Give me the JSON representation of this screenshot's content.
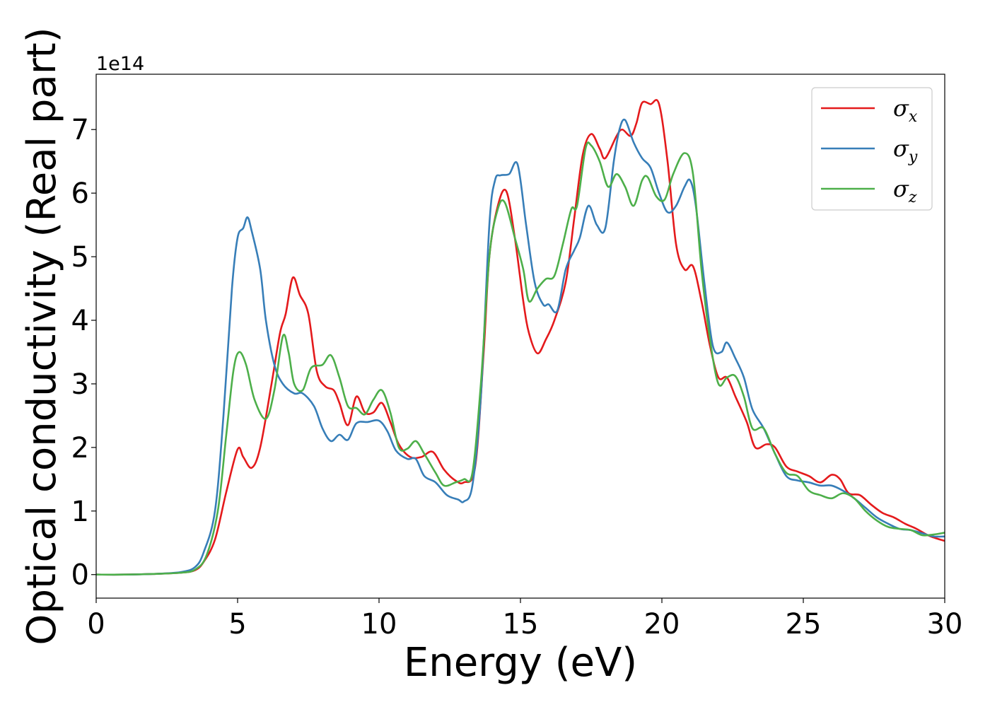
{
  "chart_data": {
    "type": "line",
    "xlabel": "Energy (eV)",
    "ylabel": "Optical conductivity (Real part)",
    "offset_text": "1e14",
    "xlim": [
      0,
      30
    ],
    "ylim": [
      -0.37,
      7.87
    ],
    "xticks": [
      0,
      5,
      10,
      15,
      20,
      25,
      30
    ],
    "yticks": [
      0,
      1,
      2,
      3,
      4,
      5,
      6,
      7
    ],
    "grid": false,
    "legend": "top-right",
    "series": [
      {
        "name": "σ",
        "name_sub": "x",
        "color": "#e41a1c",
        "points": [
          [
            0,
            0
          ],
          [
            1,
            0
          ],
          [
            2,
            0.01
          ],
          [
            3,
            0.03
          ],
          [
            3.5,
            0.07
          ],
          [
            3.8,
            0.2
          ],
          [
            4.2,
            0.55
          ],
          [
            4.6,
            1.3
          ],
          [
            5,
            1.97
          ],
          [
            5.2,
            1.85
          ],
          [
            5.5,
            1.68
          ],
          [
            5.8,
            2.0
          ],
          [
            6.2,
            3.0
          ],
          [
            6.5,
            3.8
          ],
          [
            6.7,
            4.1
          ],
          [
            6.95,
            4.67
          ],
          [
            7.2,
            4.4
          ],
          [
            7.5,
            4.1
          ],
          [
            7.8,
            3.2
          ],
          [
            8.1,
            2.96
          ],
          [
            8.4,
            2.9
          ],
          [
            8.6,
            2.7
          ],
          [
            8.9,
            2.35
          ],
          [
            9.2,
            2.8
          ],
          [
            9.5,
            2.55
          ],
          [
            9.8,
            2.55
          ],
          [
            10.1,
            2.7
          ],
          [
            10.4,
            2.4
          ],
          [
            10.7,
            2.05
          ],
          [
            11.1,
            1.85
          ],
          [
            11.5,
            1.85
          ],
          [
            11.9,
            1.93
          ],
          [
            12.3,
            1.65
          ],
          [
            12.7,
            1.48
          ],
          [
            13.0,
            1.45
          ],
          [
            13.4,
            1.7
          ],
          [
            13.7,
            3.5
          ],
          [
            13.9,
            5.0
          ],
          [
            14.2,
            5.8
          ],
          [
            14.5,
            6.03
          ],
          [
            14.8,
            5.3
          ],
          [
            15.1,
            4.3
          ],
          [
            15.3,
            3.8
          ],
          [
            15.6,
            3.48
          ],
          [
            15.9,
            3.7
          ],
          [
            16.2,
            4.0
          ],
          [
            16.6,
            4.6
          ],
          [
            16.9,
            5.6
          ],
          [
            17.2,
            6.6
          ],
          [
            17.5,
            6.93
          ],
          [
            17.8,
            6.7
          ],
          [
            18.0,
            6.55
          ],
          [
            18.4,
            6.9
          ],
          [
            18.6,
            7.0
          ],
          [
            18.9,
            6.9
          ],
          [
            19.1,
            7.1
          ],
          [
            19.3,
            7.42
          ],
          [
            19.6,
            7.4
          ],
          [
            19.9,
            7.4
          ],
          [
            20.2,
            6.5
          ],
          [
            20.5,
            5.2
          ],
          [
            20.8,
            4.8
          ],
          [
            21.1,
            4.85
          ],
          [
            21.4,
            4.3
          ],
          [
            21.7,
            3.6
          ],
          [
            22.0,
            3.1
          ],
          [
            22.3,
            3.1
          ],
          [
            22.6,
            2.8
          ],
          [
            23.0,
            2.4
          ],
          [
            23.3,
            2.0
          ],
          [
            23.7,
            2.05
          ],
          [
            24.0,
            2.0
          ],
          [
            24.4,
            1.7
          ],
          [
            24.8,
            1.62
          ],
          [
            25.2,
            1.55
          ],
          [
            25.6,
            1.45
          ],
          [
            26.0,
            1.57
          ],
          [
            26.3,
            1.5
          ],
          [
            26.6,
            1.28
          ],
          [
            27.0,
            1.25
          ],
          [
            27.4,
            1.1
          ],
          [
            27.8,
            0.97
          ],
          [
            28.2,
            0.9
          ],
          [
            28.6,
            0.8
          ],
          [
            29.0,
            0.72
          ],
          [
            29.4,
            0.62
          ],
          [
            29.7,
            0.57
          ],
          [
            30,
            0.53
          ]
        ]
      },
      {
        "name": "σ",
        "name_sub": "y",
        "color": "#377eb8",
        "points": [
          [
            0,
            0
          ],
          [
            1,
            0
          ],
          [
            2,
            0.01
          ],
          [
            3,
            0.04
          ],
          [
            3.5,
            0.12
          ],
          [
            3.8,
            0.35
          ],
          [
            4.2,
            1.0
          ],
          [
            4.5,
            2.5
          ],
          [
            4.8,
            4.5
          ],
          [
            5.0,
            5.3
          ],
          [
            5.2,
            5.45
          ],
          [
            5.35,
            5.62
          ],
          [
            5.5,
            5.4
          ],
          [
            5.8,
            4.8
          ],
          [
            6.0,
            4.0
          ],
          [
            6.3,
            3.3
          ],
          [
            6.6,
            3.0
          ],
          [
            7.0,
            2.85
          ],
          [
            7.3,
            2.85
          ],
          [
            7.7,
            2.65
          ],
          [
            8.0,
            2.3
          ],
          [
            8.3,
            2.1
          ],
          [
            8.6,
            2.2
          ],
          [
            8.9,
            2.12
          ],
          [
            9.2,
            2.38
          ],
          [
            9.6,
            2.4
          ],
          [
            10.0,
            2.42
          ],
          [
            10.3,
            2.25
          ],
          [
            10.6,
            1.95
          ],
          [
            11.0,
            1.82
          ],
          [
            11.3,
            1.82
          ],
          [
            11.6,
            1.55
          ],
          [
            12.0,
            1.45
          ],
          [
            12.4,
            1.25
          ],
          [
            12.8,
            1.18
          ],
          [
            13.0,
            1.15
          ],
          [
            13.3,
            1.4
          ],
          [
            13.6,
            2.8
          ],
          [
            13.9,
            5.5
          ],
          [
            14.1,
            6.2
          ],
          [
            14.3,
            6.28
          ],
          [
            14.6,
            6.3
          ],
          [
            14.9,
            6.45
          ],
          [
            15.2,
            5.5
          ],
          [
            15.5,
            4.6
          ],
          [
            15.8,
            4.25
          ],
          [
            16.0,
            4.25
          ],
          [
            16.3,
            4.15
          ],
          [
            16.6,
            4.8
          ],
          [
            16.9,
            5.1
          ],
          [
            17.1,
            5.3
          ],
          [
            17.4,
            5.8
          ],
          [
            17.7,
            5.5
          ],
          [
            18.0,
            5.45
          ],
          [
            18.3,
            6.5
          ],
          [
            18.5,
            7.0
          ],
          [
            18.7,
            7.15
          ],
          [
            19.0,
            6.8
          ],
          [
            19.3,
            6.55
          ],
          [
            19.6,
            6.4
          ],
          [
            19.9,
            6.0
          ],
          [
            20.2,
            5.7
          ],
          [
            20.5,
            5.8
          ],
          [
            20.8,
            6.1
          ],
          [
            21.0,
            6.2
          ],
          [
            21.2,
            5.8
          ],
          [
            21.5,
            4.6
          ],
          [
            21.8,
            3.6
          ],
          [
            22.1,
            3.5
          ],
          [
            22.3,
            3.65
          ],
          [
            22.6,
            3.4
          ],
          [
            22.9,
            3.1
          ],
          [
            23.2,
            2.6
          ],
          [
            23.6,
            2.3
          ],
          [
            24.0,
            1.9
          ],
          [
            24.4,
            1.55
          ],
          [
            24.8,
            1.48
          ],
          [
            25.2,
            1.45
          ],
          [
            25.6,
            1.4
          ],
          [
            26.0,
            1.4
          ],
          [
            26.4,
            1.32
          ],
          [
            26.8,
            1.2
          ],
          [
            27.2,
            1.05
          ],
          [
            27.6,
            0.9
          ],
          [
            28.0,
            0.8
          ],
          [
            28.4,
            0.72
          ],
          [
            28.8,
            0.7
          ],
          [
            29.2,
            0.65
          ],
          [
            29.6,
            0.6
          ],
          [
            30,
            0.6
          ]
        ]
      },
      {
        "name": "σ",
        "name_sub": "z",
        "color": "#4daf4a",
        "points": [
          [
            0,
            0
          ],
          [
            1,
            0
          ],
          [
            2,
            0.01
          ],
          [
            3,
            0.03
          ],
          [
            3.5,
            0.08
          ],
          [
            3.9,
            0.3
          ],
          [
            4.3,
            1.0
          ],
          [
            4.6,
            2.2
          ],
          [
            4.85,
            3.2
          ],
          [
            5.05,
            3.5
          ],
          [
            5.3,
            3.3
          ],
          [
            5.6,
            2.75
          ],
          [
            6.0,
            2.45
          ],
          [
            6.3,
            2.9
          ],
          [
            6.6,
            3.75
          ],
          [
            6.8,
            3.5
          ],
          [
            7.0,
            3.0
          ],
          [
            7.3,
            2.9
          ],
          [
            7.6,
            3.25
          ],
          [
            8.0,
            3.3
          ],
          [
            8.3,
            3.45
          ],
          [
            8.6,
            3.1
          ],
          [
            8.9,
            2.65
          ],
          [
            9.2,
            2.62
          ],
          [
            9.5,
            2.52
          ],
          [
            9.8,
            2.75
          ],
          [
            10.1,
            2.9
          ],
          [
            10.4,
            2.55
          ],
          [
            10.7,
            2.0
          ],
          [
            11.0,
            1.98
          ],
          [
            11.3,
            2.1
          ],
          [
            11.6,
            1.9
          ],
          [
            12.0,
            1.6
          ],
          [
            12.3,
            1.4
          ],
          [
            12.7,
            1.45
          ],
          [
            13.0,
            1.5
          ],
          [
            13.3,
            1.6
          ],
          [
            13.6,
            3.0
          ],
          [
            13.9,
            5.0
          ],
          [
            14.2,
            5.75
          ],
          [
            14.45,
            5.85
          ],
          [
            14.8,
            5.3
          ],
          [
            15.1,
            4.8
          ],
          [
            15.3,
            4.3
          ],
          [
            15.6,
            4.5
          ],
          [
            15.9,
            4.65
          ],
          [
            16.2,
            4.7
          ],
          [
            16.5,
            5.2
          ],
          [
            16.8,
            5.75
          ],
          [
            17.0,
            5.8
          ],
          [
            17.3,
            6.7
          ],
          [
            17.5,
            6.75
          ],
          [
            17.8,
            6.5
          ],
          [
            18.1,
            6.1
          ],
          [
            18.4,
            6.3
          ],
          [
            18.7,
            6.1
          ],
          [
            19.0,
            5.8
          ],
          [
            19.3,
            6.2
          ],
          [
            19.5,
            6.25
          ],
          [
            19.8,
            5.95
          ],
          [
            20.1,
            5.9
          ],
          [
            20.4,
            6.3
          ],
          [
            20.8,
            6.63
          ],
          [
            21.1,
            6.3
          ],
          [
            21.4,
            4.8
          ],
          [
            21.7,
            3.7
          ],
          [
            22.0,
            3.0
          ],
          [
            22.3,
            3.1
          ],
          [
            22.6,
            3.12
          ],
          [
            22.9,
            2.8
          ],
          [
            23.2,
            2.3
          ],
          [
            23.6,
            2.3
          ],
          [
            24.0,
            1.9
          ],
          [
            24.4,
            1.6
          ],
          [
            24.8,
            1.55
          ],
          [
            25.2,
            1.32
          ],
          [
            25.6,
            1.25
          ],
          [
            26.0,
            1.2
          ],
          [
            26.4,
            1.28
          ],
          [
            26.8,
            1.2
          ],
          [
            27.2,
            1.0
          ],
          [
            27.6,
            0.85
          ],
          [
            28.0,
            0.75
          ],
          [
            28.4,
            0.72
          ],
          [
            28.8,
            0.7
          ],
          [
            29.2,
            0.62
          ],
          [
            29.6,
            0.63
          ],
          [
            30,
            0.66
          ]
        ]
      }
    ]
  }
}
